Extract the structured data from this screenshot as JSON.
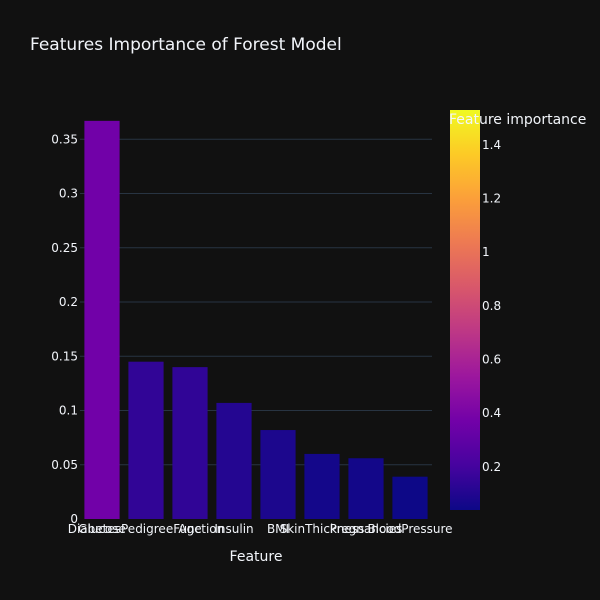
{
  "chart_data": {
    "type": "bar",
    "title": "Features Importance of Forest Model",
    "xlabel": "Feature",
    "ylabel": "",
    "categories": [
      "Glucose",
      "DiabetesPedigreeFunction",
      "Age",
      "Insulin",
      "BMI",
      "SkinThickness",
      "Pregnancies",
      "BloodPressure"
    ],
    "values": [
      0.367,
      0.145,
      0.14,
      0.107,
      0.082,
      0.06,
      0.056,
      0.039
    ],
    "ylim": [
      0,
      0.377
    ],
    "yticks": [
      0,
      0.05,
      0.1,
      0.15,
      0.2,
      0.25,
      0.3,
      0.35
    ],
    "ytick_labels": [
      "0",
      "0.05",
      "0.1",
      "0.15",
      "0.2",
      "0.25",
      "0.3",
      "0.35"
    ],
    "grid": true,
    "colorbar": {
      "title": "Feature importance",
      "range": [
        0.039,
        1.53
      ],
      "ticks": [
        0.2,
        0.4,
        0.6,
        0.8,
        1,
        1.2,
        1.4
      ],
      "tick_labels": [
        "0.2",
        "0.4",
        "0.6",
        "0.8",
        "1",
        "1.2",
        "1.4"
      ],
      "colorscale": [
        "#0d0887",
        "#46039f",
        "#7201a8",
        "#9c179e",
        "#bd3786",
        "#d8576b",
        "#ed7953",
        "#fb9f3a",
        "#fdca26",
        "#f0f921"
      ]
    },
    "colors": {
      "background": "#111111",
      "grid": "#283442",
      "text": "#f2f5fa"
    }
  }
}
